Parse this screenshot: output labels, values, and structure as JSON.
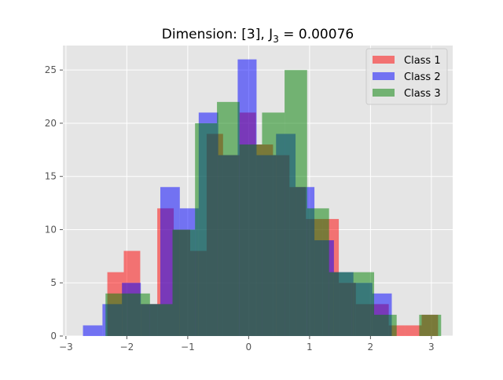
{
  "chart_data": {
    "type": "bar",
    "title": "Dimension: [3], J",
    "title_subscript": "3",
    "title_value": " = 0.00076",
    "xlabel": "",
    "ylabel": "",
    "xlim": [
      -3.05,
      3.35
    ],
    "ylim": [
      0,
      27.3
    ],
    "xticks": [
      -3,
      -2,
      -1,
      0,
      1,
      2,
      3
    ],
    "xtick_labels": [
      "−3",
      "−2",
      "−1",
      "0",
      "1",
      "2",
      "3"
    ],
    "yticks": [
      0,
      5,
      10,
      15,
      20,
      25
    ],
    "ytick_labels": [
      "0",
      "5",
      "10",
      "15",
      "20",
      "25"
    ],
    "grid": true,
    "legend_position": "top-right",
    "bar_alpha": 0.5,
    "series": [
      {
        "name": "Class 1",
        "color": "#ff0000",
        "bins": [
          [
            -2.32,
            -2.05,
            6
          ],
          [
            -2.05,
            -1.78,
            8
          ],
          [
            -1.78,
            -1.5,
            3
          ],
          [
            -1.5,
            -1.23,
            12
          ],
          [
            -1.23,
            -0.96,
            10
          ],
          [
            -0.96,
            -0.69,
            8
          ],
          [
            -0.69,
            -0.42,
            19
          ],
          [
            -0.42,
            -0.15,
            17
          ],
          [
            -0.15,
            0.12,
            21
          ],
          [
            0.12,
            0.4,
            18
          ],
          [
            0.4,
            0.67,
            17
          ],
          [
            0.67,
            0.94,
            14
          ],
          [
            0.94,
            1.21,
            11
          ],
          [
            1.21,
            1.48,
            11
          ],
          [
            1.48,
            1.76,
            5
          ],
          [
            1.76,
            2.03,
            3
          ],
          [
            2.03,
            2.3,
            3
          ],
          [
            2.3,
            2.57,
            1
          ],
          [
            2.57,
            2.84,
            1
          ],
          [
            2.84,
            3.11,
            2
          ]
        ]
      },
      {
        "name": "Class 2",
        "color": "#0000ff",
        "bins": [
          [
            -2.72,
            -2.4,
            1
          ],
          [
            -2.4,
            -2.08,
            3
          ],
          [
            -2.08,
            -1.77,
            5
          ],
          [
            -1.77,
            -1.45,
            3
          ],
          [
            -1.45,
            -1.13,
            14
          ],
          [
            -1.13,
            -0.82,
            12
          ],
          [
            -0.82,
            -0.5,
            21
          ],
          [
            -0.5,
            -0.18,
            17
          ],
          [
            -0.18,
            0.13,
            26
          ],
          [
            0.13,
            0.45,
            17
          ],
          [
            0.45,
            0.77,
            19
          ],
          [
            0.77,
            1.08,
            14
          ],
          [
            1.08,
            1.4,
            9
          ],
          [
            1.4,
            1.72,
            6
          ],
          [
            1.72,
            2.03,
            5
          ],
          [
            2.03,
            2.35,
            4
          ]
        ]
      },
      {
        "name": "Class 3",
        "color": "#008000",
        "bins": [
          [
            -2.35,
            -1.98,
            4
          ],
          [
            -1.98,
            -1.62,
            4
          ],
          [
            -1.62,
            -1.25,
            3
          ],
          [
            -1.25,
            -0.88,
            10
          ],
          [
            -0.88,
            -0.52,
            20
          ],
          [
            -0.52,
            -0.15,
            22
          ],
          [
            -0.15,
            0.22,
            18
          ],
          [
            0.22,
            0.59,
            21
          ],
          [
            0.59,
            0.96,
            25
          ],
          [
            0.96,
            1.32,
            12
          ],
          [
            1.32,
            1.69,
            6
          ],
          [
            1.69,
            2.06,
            6
          ],
          [
            2.06,
            2.43,
            2
          ],
          [
            2.43,
            2.8,
            0
          ],
          [
            2.8,
            3.16,
            2
          ]
        ]
      }
    ]
  },
  "style": {
    "axes_bg": "#e5e5e5",
    "grid_color": "#ffffff",
    "tick_color": "#555555",
    "text_color": "#000000"
  }
}
